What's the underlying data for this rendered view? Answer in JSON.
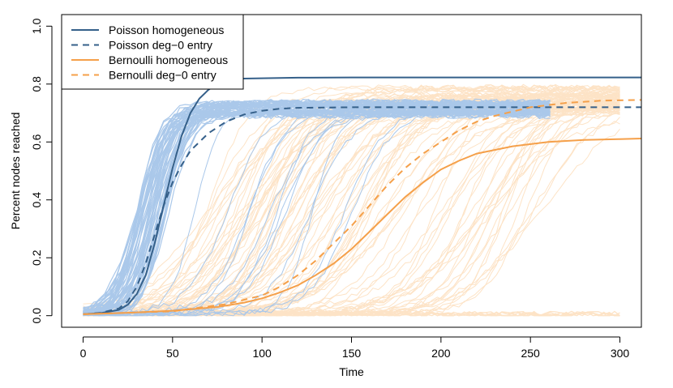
{
  "chart_data": {
    "type": "line",
    "title": "",
    "xlabel": "Time",
    "ylabel": "Percent nodes reached",
    "xlim": [
      -12,
      312
    ],
    "ylim": [
      -0.04,
      1.04
    ],
    "xticks": [
      0,
      50,
      100,
      150,
      200,
      250,
      300
    ],
    "xtick_labels": [
      "0",
      "50",
      "100",
      "150",
      "200",
      "250",
      "300"
    ],
    "yticks": [
      0.0,
      0.2,
      0.4,
      0.6,
      0.8,
      1.0
    ],
    "ytick_labels": [
      "0.0",
      "0.2",
      "0.4",
      "0.6",
      "0.8",
      "1.0"
    ],
    "grid": false,
    "legend_position": "top-left",
    "colors": {
      "poisson": "#35608a",
      "bernoulli": "#f5a04a",
      "poisson_runs": "#aac8ea",
      "bernoulli_runs": "#fde3c6"
    },
    "series": [
      {
        "name": "Poisson homogeneous",
        "style": "solid",
        "color": "#35608a",
        "x": [
          0,
          10,
          20,
          25,
          30,
          35,
          40,
          45,
          50,
          55,
          60,
          65,
          70,
          75,
          80,
          90,
          100,
          120,
          150,
          200,
          250,
          312
        ],
        "y": [
          0.005,
          0.009,
          0.02,
          0.038,
          0.075,
          0.14,
          0.25,
          0.38,
          0.51,
          0.62,
          0.7,
          0.75,
          0.78,
          0.8,
          0.812,
          0.819,
          0.82,
          0.822,
          0.823,
          0.823,
          0.823,
          0.823
        ]
      },
      {
        "name": "Poisson deg−0 entry",
        "style": "dashed",
        "color": "#35608a",
        "x": [
          0,
          10,
          20,
          25,
          30,
          35,
          40,
          45,
          50,
          55,
          60,
          70,
          80,
          90,
          100,
          110,
          120,
          150,
          200,
          250,
          312
        ],
        "y": [
          0.005,
          0.01,
          0.025,
          0.05,
          0.1,
          0.18,
          0.28,
          0.38,
          0.46,
          0.52,
          0.57,
          0.63,
          0.67,
          0.695,
          0.708,
          0.715,
          0.718,
          0.72,
          0.72,
          0.72,
          0.72
        ]
      },
      {
        "name": "Bernoulli homogeneous",
        "style": "solid",
        "color": "#f5a04a",
        "x": [
          0,
          25,
          50,
          75,
          90,
          100,
          110,
          120,
          130,
          140,
          150,
          160,
          170,
          180,
          190,
          200,
          210,
          220,
          240,
          260,
          280,
          300,
          312
        ],
        "y": [
          0.005,
          0.01,
          0.017,
          0.03,
          0.045,
          0.06,
          0.08,
          0.105,
          0.14,
          0.18,
          0.23,
          0.29,
          0.35,
          0.41,
          0.46,
          0.505,
          0.535,
          0.56,
          0.585,
          0.6,
          0.607,
          0.61,
          0.612
        ]
      },
      {
        "name": "Bernoulli deg−0 entry",
        "style": "dashed",
        "color": "#f5a04a",
        "x": [
          0,
          50,
          80,
          100,
          110,
          120,
          130,
          140,
          150,
          160,
          170,
          180,
          190,
          200,
          210,
          220,
          230,
          240,
          250,
          270,
          290,
          312
        ],
        "y": [
          0.005,
          0.015,
          0.04,
          0.07,
          0.1,
          0.14,
          0.19,
          0.25,
          0.31,
          0.38,
          0.45,
          0.51,
          0.56,
          0.6,
          0.64,
          0.67,
          0.69,
          0.705,
          0.72,
          0.735,
          0.743,
          0.745
        ]
      }
    ],
    "simulation_runs": {
      "poisson": {
        "color": "#aac8ea",
        "approx_count": 60,
        "plateau": 0.72,
        "onset_range": [
          5,
          75
        ],
        "late_runs_onset_range": [
          50,
          160
        ]
      },
      "bernoulli": {
        "color": "#fde3c6",
        "approx_count": 90,
        "plateau": 0.75,
        "onset_range": [
          40,
          290
        ],
        "stuck_runs_value": 0.0
      }
    }
  }
}
